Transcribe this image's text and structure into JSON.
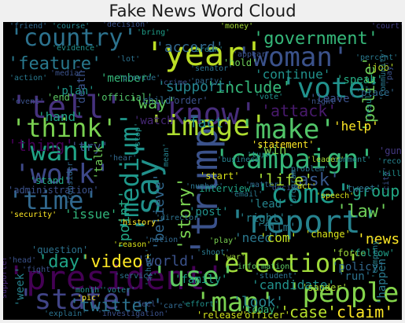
{
  "title": "Fake News Word Cloud",
  "words": [
    {
      "text": "'president'",
      "color": "#440154"
    },
    {
      "text": "'trump'",
      "color": "#3b528b"
    },
    {
      "text": "'tell'",
      "color": "#46327e"
    },
    {
      "text": "'know'",
      "color": "#472d7b"
    },
    {
      "text": "'year'",
      "color": "#bddf26"
    },
    {
      "text": "'woman'",
      "color": "#3b528b"
    },
    {
      "text": "'country'",
      "color": "#2c728e"
    },
    {
      "text": "'campaign'",
      "color": "#35b779"
    },
    {
      "text": "'image'",
      "color": "#addc30"
    },
    {
      "text": "'say'",
      "color": "#21918c"
    },
    {
      "text": "'report'",
      "color": "#26828e"
    },
    {
      "text": "'people'",
      "color": "#84d44b"
    },
    {
      "text": "'election'",
      "color": "#9fda3a"
    },
    {
      "text": "'state'",
      "color": "#414487"
    },
    {
      "text": "'time'",
      "color": "#31688e"
    },
    {
      "text": "'make'",
      "color": "#52c569"
    },
    {
      "text": "'vote'",
      "color": "#21918c"
    },
    {
      "text": "'work'",
      "color": "#3e4989"
    },
    {
      "text": "'want'",
      "color": "#20a486"
    },
    {
      "text": "'think'",
      "color": "#7ad151"
    },
    {
      "text": "'come'",
      "color": "#1e9b8a"
    },
    {
      "text": "'man'",
      "color": "#7ad151"
    },
    {
      "text": "'use'",
      "color": "#5ec962"
    },
    {
      "text": "'government'",
      "color": "#35b779"
    },
    {
      "text": "'medium'",
      "color": "#1f988b"
    },
    {
      "text": "'video'",
      "color": "#fde725"
    },
    {
      "text": "'twitter'",
      "color": "#2c728e"
    },
    {
      "text": "'day'",
      "color": "#20a486"
    },
    {
      "text": "'attack'",
      "color": "#481a6c"
    },
    {
      "text": "'law'",
      "color": "#6ece58"
    },
    {
      "text": "'ask'",
      "color": "#38588c"
    },
    {
      "text": "'feature'",
      "color": "#29798e"
    },
    {
      "text": "'story'",
      "color": "#7ad151"
    },
    {
      "text": "'claim'",
      "color": "#fde725"
    },
    {
      "text": "'news'",
      "color": "#fde725"
    },
    {
      "text": "'group'",
      "color": "#22a884"
    },
    {
      "text": "'life'",
      "color": "#a5db36"
    },
    {
      "text": "'police'",
      "color": "#6ece58"
    },
    {
      "text": "'include'",
      "color": "#35b779"
    },
    {
      "text": "'support'",
      "color": "#25858e"
    },
    {
      "text": "'way'",
      "color": "#63cb5f"
    },
    {
      "text": "'point'",
      "color": "#22a884"
    },
    {
      "text": "'believe'",
      "color": "#31688e"
    },
    {
      "text": "'fact'",
      "color": "#23898e"
    },
    {
      "text": "'world'",
      "color": "#3b528b"
    },
    {
      "text": "'family'",
      "color": "#1fa187"
    },
    {
      "text": "'candidate'",
      "color": "#21918c"
    },
    {
      "text": "'look'",
      "color": "#26828e"
    },
    {
      "text": "'case'",
      "color": "#b5de2b"
    },
    {
      "text": "'need'",
      "color": "#2a788e"
    },
    {
      "text": "'thing'",
      "color": "#440154"
    },
    {
      "text": "'try'",
      "color": "#3b528b"
    },
    {
      "text": "'member'",
      "color": "#35b779"
    },
    {
      "text": "'accord'",
      "color": "#31688e"
    },
    {
      "text": "'plan'",
      "color": "#1f988b"
    },
    {
      "text": "'continue'",
      "color": "#21918c"
    },
    {
      "text": "'leave'",
      "color": "#3b528b"
    },
    {
      "text": "'win'",
      "color": "#7ad151"
    },
    {
      "text": "'watch'",
      "color": "#482878"
    },
    {
      "text": "'hand'",
      "color": "#20a486"
    },
    {
      "text": "'help'",
      "color": "#fde725"
    },
    {
      "text": "'death'",
      "color": "#3b528b"
    },
    {
      "text": "'week'",
      "color": "#26828e"
    },
    {
      "text": "'happen'",
      "color": "#29798e"
    },
    {
      "text": "'issue'",
      "color": "#31b57b"
    },
    {
      "text": "'com'",
      "color": "#c2df23"
    },
    {
      "text": "'change'",
      "color": "#d8e219"
    },
    {
      "text": "'force'",
      "color": "#a0da39"
    },
    {
      "text": "'administration'",
      "color": "#3b528b"
    },
    {
      "text": "'question'",
      "color": "#2c728e"
    },
    {
      "text": "'gun'",
      "color": "#443983"
    },
    {
      "text": "'official'",
      "color": "#52c569"
    },
    {
      "text": "'statement'",
      "color": "#fde725"
    },
    {
      "text": "'run'",
      "color": "#2c728e"
    },
    {
      "text": "'follow'",
      "color": "#1f9e89"
    },
    {
      "text": "'policy'",
      "color": "#31688e"
    },
    {
      "text": "'officer'",
      "color": "#c8e020"
    },
    {
      "text": "'release'",
      "color": "#d2e21b"
    },
    {
      "text": "'sander'",
      "color": "#aadc32"
    },
    {
      "text": "'talk'",
      "color": "#6ece58"
    },
    {
      "text": "'start'",
      "color": "#d8e219"
    },
    {
      "text": "'post'",
      "color": "#21918c"
    },
    {
      "text": "'job'",
      "color": "#bddf26"
    },
    {
      "text": "'speak'",
      "color": "#25ab82"
    },
    {
      "text": "'place'",
      "color": "#31688e"
    },
    {
      "text": "'right'",
      "color": "#26828e"
    },
    {
      "text": "'film'",
      "color": "#2a788e"
    },
    {
      "text": "'lead'",
      "color": "#25858e"
    },
    {
      "text": "'tweet'",
      "color": "#2c728e"
    },
    {
      "text": "'order'",
      "color": "#3b528b"
    },
    {
      "text": "'child'",
      "color": "#31688e"
    },
    {
      "text": "'stand'",
      "color": "#22a884"
    },
    {
      "text": "'interview'",
      "color": "#20a486"
    },
    {
      "text": "'hold'",
      "color": "#6ece58"
    },
    {
      "text": "'today'",
      "color": "#31b57b"
    },
    {
      "text": "'information'",
      "color": "#5ec962"
    },
    {
      "text": "'play'",
      "color": "#7ad151"
    },
    {
      "text": "'school'",
      "color": "#2c728e"
    },
    {
      "text": "'event'",
      "color": "#3b528b"
    },
    {
      "text": "'end'",
      "color": "#5ec962"
    },
    {
      "text": "'friend'",
      "color": "#31688e"
    },
    {
      "text": "'course'",
      "color": "#25858e"
    },
    {
      "text": "'decision'",
      "color": "#3b528b"
    },
    {
      "text": "'money'",
      "color": "#a5db36"
    },
    {
      "text": "'bring'",
      "color": "#1f9e89"
    },
    {
      "text": "'evidence'",
      "color": "#21918c"
    },
    {
      "text": "'court'",
      "color": "#433e85"
    },
    {
      "text": "'percent'",
      "color": "#29798e"
    },
    {
      "text": "'pay'",
      "color": "#3b528b"
    },
    {
      "text": "'number'",
      "color": "#2c728e"
    },
    {
      "text": "'business'",
      "color": "#26828e"
    },
    {
      "text": "'comment'",
      "color": "#25858e"
    },
    {
      "text": "'decide'",
      "color": "#3b528b"
    },
    {
      "text": "'act'",
      "color": "#d8e219"
    },
    {
      "text": "'matter'",
      "color": "#31688e"
    },
    {
      "text": "'leader'",
      "color": "#aadc32"
    },
    {
      "text": "'turn'",
      "color": "#21918c"
    },
    {
      "text": "'email'",
      "color": "#2a788e"
    },
    {
      "text": "'program'",
      "color": "#29798e"
    },
    {
      "text": "'speech'",
      "color": "#d8e219"
    },
    {
      "text": "'city'",
      "color": "#3b528b"
    },
    {
      "text": "'nation'",
      "color": "#31688e"
    },
    {
      "text": "'reason'",
      "color": "#d8e219"
    },
    {
      "text": "'history'",
      "color": "#fde725"
    },
    {
      "text": "'director'",
      "color": "#2c728e"
    },
    {
      "text": "'consider'",
      "color": "#31688e"
    },
    {
      "text": "'security'",
      "color": "#fde725"
    },
    {
      "text": "'service'",
      "color": "#2c728e"
    },
    {
      "text": "'fight'",
      "color": "#3b528b"
    },
    {
      "text": "'month'",
      "color": "#21918c"
    },
    {
      "text": "'voter'",
      "color": "#26828e"
    },
    {
      "text": "'pic'",
      "color": "#fde725"
    },
    {
      "text": "'feel'",
      "color": "#3b528b"
    },
    {
      "text": "'care'",
      "color": "#31688e"
    },
    {
      "text": "'effort'",
      "color": "#21918c"
    },
    {
      "text": "'investigation'",
      "color": "#3b528b"
    },
    {
      "text": "'explain'",
      "color": "#2c728e"
    },
    {
      "text": "'supporter'",
      "color": "#482878"
    },
    {
      "text": "'head'",
      "color": "#3b528b"
    },
    {
      "text": "'company'",
      "color": "#26828e"
    },
    {
      "text": "'student'",
      "color": "#2c728e"
    },
    {
      "text": "'shoot'",
      "color": "#29798e"
    },
    {
      "text": "'war'",
      "color": "#a0da39"
    },
    {
      "text": "'kill'",
      "color": "#21918c"
    },
    {
      "text": "'record'",
      "color": "#26828e"
    },
    {
      "text": "'problem'",
      "color": "#2c728e"
    },
    {
      "text": "'night'",
      "color": "#3b528b"
    },
    {
      "text": "'vote'",
      "color": "#21918c"
    },
    {
      "text": "'party'",
      "color": "#31688e"
    },
    {
      "text": "'provide'",
      "color": "#2c728e"
    },
    {
      "text": "'crime'",
      "color": "#3b528b"
    },
    {
      "text": "'action'",
      "color": "#29798e"
    },
    {
      "text": "'break'",
      "color": "#25858e"
    },
    {
      "text": "'appear'",
      "color": "#3b528b"
    },
    {
      "text": "'lot'",
      "color": "#2c728e"
    },
    {
      "text": "'hear'",
      "color": "#31688e"
    },
    {
      "text": "'mean'",
      "color": "#26828e"
    },
    {
      "text": "'stop'",
      "color": "#21918c"
    },
    {
      "text": "'media'",
      "color": "#3b528b"
    },
    {
      "text": "'senator'",
      "color": "#2c728e"
    },
    {
      "text": "'community'",
      "color": "#29798e"
    },
    {
      "text": "'result'",
      "color": "#21918c"
    }
  ]
}
